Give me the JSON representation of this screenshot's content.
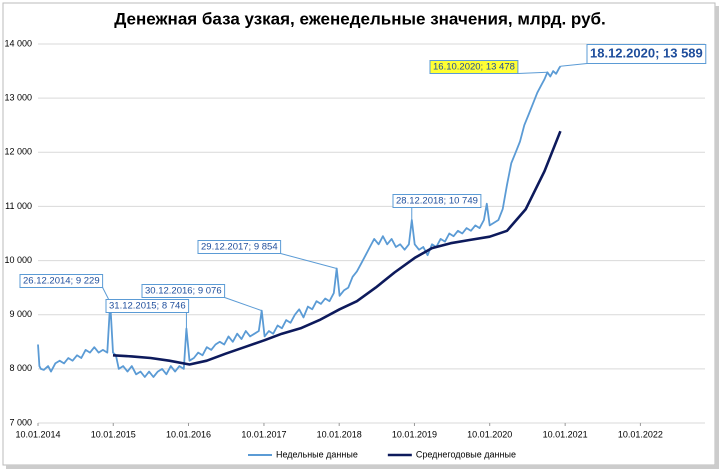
{
  "chart_data": {
    "type": "line",
    "title": "Денежная база узкая, еженедельные значения, млрд. руб.",
    "xlim": [
      "10.01.2014",
      "10.10.2022"
    ],
    "xticks": [
      "10.01.2014",
      "10.01.2015",
      "10.01.2016",
      "10.01.2017",
      "10.01.2018",
      "10.01.2019",
      "10.01.2020",
      "10.01.2021",
      "10.01.2022"
    ],
    "ylim": [
      7000,
      14000
    ],
    "yticks": [
      {
        "value": 7000,
        "label": "7 000"
      },
      {
        "value": 8000,
        "label": "8 000"
      },
      {
        "value": 9000,
        "label": "9 000"
      },
      {
        "value": 10000,
        "label": "10 000"
      },
      {
        "value": 11000,
        "label": "11 000"
      },
      {
        "value": 12000,
        "label": "12 000"
      },
      {
        "value": 13000,
        "label": "13 000"
      },
      {
        "value": 14000,
        "label": "14 000"
      }
    ],
    "grid": true,
    "legend": "bottom",
    "series": [
      {
        "name": "Недельные данные",
        "color": "#5b9bd5",
        "x": [
          "10.01.2014",
          "17.01.2014",
          "24.01.2014",
          "07.02.2014",
          "28.02.2014",
          "14.03.2014",
          "04.04.2014",
          "25.04.2014",
          "16.05.2014",
          "06.06.2014",
          "27.06.2014",
          "18.07.2014",
          "08.08.2014",
          "29.08.2014",
          "19.09.2014",
          "10.10.2014",
          "31.10.2014",
          "21.11.2014",
          "12.12.2014",
          "26.12.2014",
          "09.01.2015",
          "23.01.2015",
          "06.02.2015",
          "27.02.2015",
          "20.03.2015",
          "10.04.2015",
          "01.05.2015",
          "22.05.2015",
          "12.06.2015",
          "03.07.2015",
          "24.07.2015",
          "14.08.2015",
          "04.09.2015",
          "25.09.2015",
          "16.10.2015",
          "06.11.2015",
          "27.11.2015",
          "18.12.2015",
          "31.12.2015",
          "15.01.2016",
          "05.02.2016",
          "26.02.2016",
          "18.03.2016",
          "08.04.2016",
          "29.04.2016",
          "20.05.2016",
          "10.06.2016",
          "01.07.2016",
          "22.07.2016",
          "12.08.2016",
          "02.09.2016",
          "23.09.2016",
          "14.10.2016",
          "04.11.2016",
          "25.11.2016",
          "16.12.2016",
          "30.12.2016",
          "13.01.2017",
          "03.02.2017",
          "24.02.2017",
          "17.03.2017",
          "07.04.2017",
          "28.04.2017",
          "19.05.2017",
          "09.06.2017",
          "30.06.2017",
          "21.07.2017",
          "11.08.2017",
          "01.09.2017",
          "22.09.2017",
          "13.10.2017",
          "03.11.2017",
          "24.11.2017",
          "15.12.2017",
          "29.12.2017",
          "12.01.2018",
          "02.02.2018",
          "23.02.2018",
          "16.03.2018",
          "06.04.2018",
          "27.04.2018",
          "18.05.2018",
          "08.06.2018",
          "29.06.2018",
          "20.07.2018",
          "10.08.2018",
          "31.08.2018",
          "21.09.2018",
          "12.10.2018",
          "02.11.2018",
          "23.11.2018",
          "14.12.2018",
          "28.12.2018",
          "11.01.2019",
          "01.02.2019",
          "22.02.2019",
          "15.03.2019",
          "05.04.2019",
          "26.04.2019",
          "17.05.2019",
          "07.06.2019",
          "28.06.2019",
          "19.07.2019",
          "09.08.2019",
          "30.08.2019",
          "20.09.2019",
          "11.10.2019",
          "01.11.2019",
          "22.11.2019",
          "13.12.2019",
          "27.12.2019",
          "10.01.2020",
          "31.01.2020",
          "21.02.2020",
          "13.03.2020",
          "03.04.2020",
          "24.04.2020",
          "15.05.2020",
          "05.06.2020",
          "26.06.2020",
          "17.07.2020",
          "07.08.2020",
          "28.08.2020",
          "18.09.2020",
          "02.10.2020",
          "16.10.2020",
          "30.10.2020",
          "13.11.2020",
          "27.11.2020",
          "11.12.2020",
          "18.12.2020"
        ],
        "values": [
          8450,
          8050,
          8000,
          7980,
          8050,
          7950,
          8100,
          8150,
          8100,
          8200,
          8150,
          8250,
          8200,
          8350,
          8300,
          8400,
          8300,
          8350,
          8300,
          9229,
          8300,
          8250,
          8000,
          8050,
          7950,
          8050,
          7900,
          7950,
          7850,
          7950,
          7850,
          7950,
          8000,
          7900,
          8050,
          7950,
          8050,
          8000,
          8746,
          8150,
          8200,
          8300,
          8250,
          8400,
          8350,
          8450,
          8500,
          8450,
          8600,
          8500,
          8650,
          8550,
          8700,
          8600,
          8650,
          8700,
          9076,
          8600,
          8700,
          8650,
          8800,
          8750,
          8900,
          8850,
          9000,
          9100,
          8950,
          9150,
          9100,
          9250,
          9200,
          9300,
          9250,
          9400,
          9854,
          9350,
          9450,
          9500,
          9700,
          9800,
          9950,
          10100,
          10250,
          10400,
          10300,
          10450,
          10300,
          10400,
          10250,
          10300,
          10200,
          10300,
          10749,
          10300,
          10200,
          10250,
          10100,
          10300,
          10250,
          10400,
          10350,
          10500,
          10450,
          10550,
          10500,
          10600,
          10550,
          10650,
          10600,
          10750,
          11050,
          10650,
          10700,
          10750,
          10950,
          11400,
          11800,
          12000,
          12200,
          12500,
          12700,
          12900,
          13100,
          13250,
          13350,
          13478,
          13400,
          13500,
          13450,
          13550,
          13589
        ]
      },
      {
        "name": "Среднегодовые данные",
        "color": "#0d1a5c",
        "x": [
          "09.01.2015",
          "10.04.2015",
          "10.07.2015",
          "09.10.2015",
          "15.01.2016",
          "08.04.2016",
          "08.07.2016",
          "07.10.2016",
          "13.01.2017",
          "07.04.2017",
          "07.07.2017",
          "06.10.2017",
          "12.01.2018",
          "06.04.2018",
          "06.07.2018",
          "05.10.2018",
          "11.01.2019",
          "05.04.2019",
          "05.07.2019",
          "04.10.2019",
          "10.01.2020",
          "03.04.2020",
          "03.07.2020",
          "02.10.2020",
          "18.12.2020"
        ],
        "values": [
          8250,
          8230,
          8200,
          8150,
          8080,
          8150,
          8280,
          8400,
          8530,
          8650,
          8750,
          8900,
          9100,
          9250,
          9500,
          9780,
          10050,
          10230,
          10320,
          10380,
          10440,
          10550,
          10950,
          11650,
          12390
        ]
      }
    ],
    "annotations": [
      {
        "label": "26.12.2014; 9 229",
        "x": "26.12.2014",
        "y": 9229,
        "background": "#ffffff"
      },
      {
        "label": "31.12.2015; 8 746",
        "x": "31.12.2015",
        "y": 8746,
        "background": "#ffffff"
      },
      {
        "label": "30.12.2016; 9 076",
        "x": "30.12.2016",
        "y": 9076,
        "background": "#ffffff"
      },
      {
        "label": "29.12.2017; 9 854",
        "x": "29.12.2017",
        "y": 9854,
        "background": "#ffffff"
      },
      {
        "label": "28.12.2018; 10 749",
        "x": "28.12.2018",
        "y": 10749,
        "background": "#ffffff"
      },
      {
        "label": "16.10.2020; 13 478",
        "x": "16.10.2020",
        "y": 13478,
        "background": "#ffff33"
      },
      {
        "label": "18.12.2020; 13 589",
        "x": "18.12.2020",
        "y": 13589,
        "background": "#ffffff"
      }
    ]
  }
}
